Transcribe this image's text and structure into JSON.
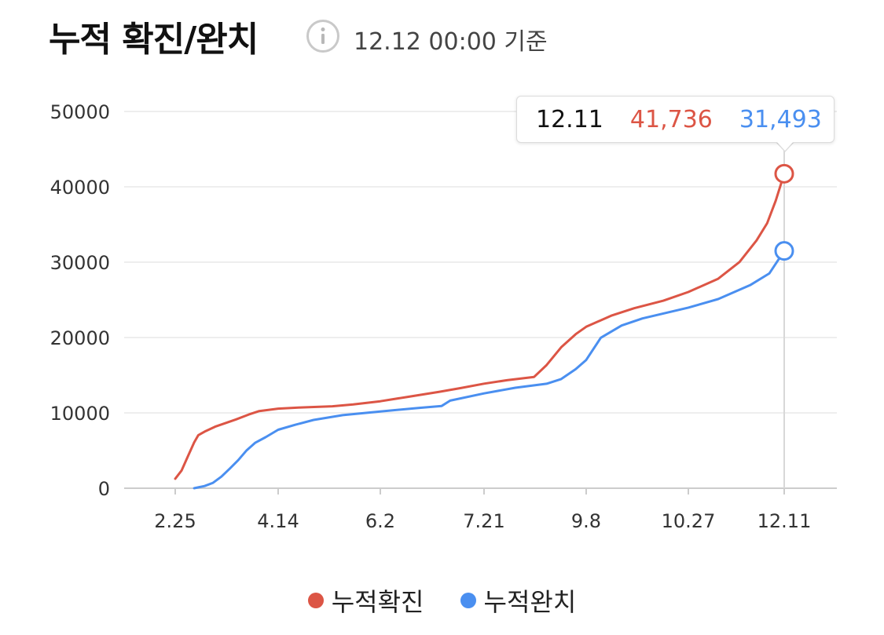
{
  "header": {
    "title": "누적 확진/완치",
    "basis": "12.12 00:00 기준",
    "info_icon": "info-icon"
  },
  "tooltip": {
    "date": "12.11",
    "confirmed": "41,736",
    "recovered": "31,493"
  },
  "legend": {
    "confirmed": "누적확진",
    "recovered": "누적완치"
  },
  "colors": {
    "confirmed": "#dc5545",
    "recovered": "#4a8ff0",
    "grid": "#eeeeee",
    "axis": "#cccccc"
  },
  "chart_data": {
    "type": "line",
    "title": "누적 확진/완치",
    "xlabel": "",
    "ylabel": "",
    "ylim": [
      0,
      50000
    ],
    "yticks": [
      "0",
      "10000",
      "20000",
      "30000",
      "40000",
      "50000"
    ],
    "xticks": [
      "2.25",
      "4.14",
      "6.2",
      "7.21",
      "9.8",
      "10.27",
      "12.11"
    ],
    "grid": true,
    "legend_position": "bottom",
    "series": [
      {
        "name": "누적확진",
        "color": "#dc5545",
        "points": [
          [
            "2.25",
            1261
          ],
          [
            "2.28",
            2337
          ],
          [
            "3.2",
            4212
          ],
          [
            "3.5",
            6088
          ],
          [
            "3.7",
            7041
          ],
          [
            "3.10",
            7513
          ],
          [
            "3.15",
            8162
          ],
          [
            "3.20",
            8652
          ],
          [
            "3.25",
            9137
          ],
          [
            "3.31",
            9786
          ],
          [
            "4.5",
            10237
          ],
          [
            "4.14",
            10564
          ],
          [
            "4.25",
            10718
          ],
          [
            "5.10",
            10874
          ],
          [
            "5.20",
            11110
          ],
          [
            "6.2",
            11541
          ],
          [
            "6.15",
            12121
          ],
          [
            "6.30",
            12800
          ],
          [
            "7.10",
            13293
          ],
          [
            "7.21",
            13879
          ],
          [
            "8.1",
            14336
          ],
          [
            "8.14",
            14770
          ],
          [
            "8.20",
            16346
          ],
          [
            "8.27",
            18706
          ],
          [
            "9.3",
            20449
          ],
          [
            "9.8",
            21432
          ],
          [
            "9.20",
            22893
          ],
          [
            "10.1",
            23889
          ],
          [
            "10.15",
            24889
          ],
          [
            "10.27",
            26043
          ],
          [
            "11.10",
            27799
          ],
          [
            "11.20",
            30017
          ],
          [
            "11.28",
            32887
          ],
          [
            "12.3",
            35163
          ],
          [
            "12.7",
            38161
          ],
          [
            "12.11",
            41736
          ]
        ]
      },
      {
        "name": "누적완치",
        "color": "#4a8ff0",
        "points": [
          [
            "3.5",
            0
          ],
          [
            "3.10",
            288
          ],
          [
            "3.14",
            714
          ],
          [
            "3.18",
            1540
          ],
          [
            "3.22",
            2612
          ],
          [
            "3.26",
            3730
          ],
          [
            "3.30",
            5033
          ],
          [
            "4.3",
            6021
          ],
          [
            "4.8",
            6776
          ],
          [
            "4.14",
            7757
          ],
          [
            "4.22",
            8411
          ],
          [
            "5.1",
            9059
          ],
          [
            "5.15",
            9695
          ],
          [
            "6.2",
            10191
          ],
          [
            "6.20",
            10654
          ],
          [
            "7.1",
            10916
          ],
          [
            "7.5",
            11629
          ],
          [
            "7.21",
            12586
          ],
          [
            "8.5",
            13334
          ],
          [
            "8.20",
            13863
          ],
          [
            "8.27",
            14492
          ],
          [
            "9.3",
            15800
          ],
          [
            "9.8",
            17023
          ],
          [
            "9.15",
            19970
          ],
          [
            "9.25",
            21590
          ],
          [
            "10.5",
            22530
          ],
          [
            "10.27",
            23970
          ],
          [
            "11.10",
            25100
          ],
          [
            "11.25",
            26950
          ],
          [
            "12.4",
            28500
          ],
          [
            "12.11",
            31493
          ]
        ]
      }
    ]
  }
}
